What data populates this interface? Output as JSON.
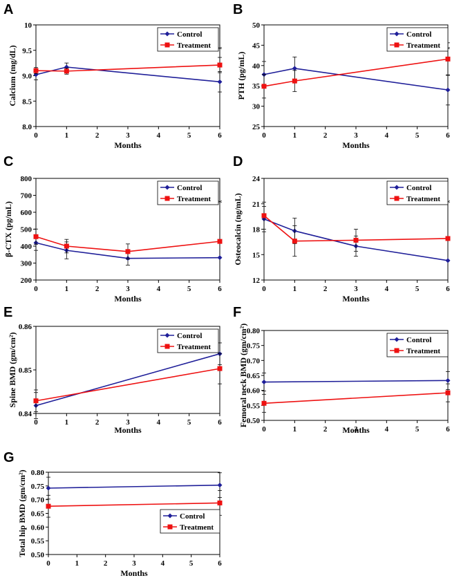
{
  "colors": {
    "control": "#1f1f99",
    "treatment": "#ee1111"
  },
  "chart_data": [
    {
      "panel": "A",
      "type": "line",
      "ylabel": "Calcium (mg/dL)",
      "xlabel": "Months",
      "ylim": [
        8.0,
        10.0
      ],
      "yticks": [
        "8.0",
        "8.5",
        "9.0",
        "9.5",
        "10"
      ],
      "ytick_values": [
        8.0,
        8.5,
        9.0,
        9.5,
        10.0
      ],
      "xlim": [
        0,
        6
      ],
      "xticks": [
        "0",
        "1",
        "2",
        "3",
        "4",
        "5",
        "6"
      ],
      "xtick_values": [
        0,
        1,
        2,
        3,
        4,
        5,
        6
      ],
      "series": [
        {
          "name": "Control",
          "x": [
            0,
            1,
            6
          ],
          "values": [
            9.02,
            9.17,
            8.88
          ],
          "errors": [
            0.1,
            0.08,
            0.2
          ]
        },
        {
          "name": "Treatment",
          "x": [
            0,
            1,
            6
          ],
          "values": [
            9.1,
            9.09,
            9.21
          ],
          "errors": [
            0.06,
            0.06,
            0.15
          ]
        }
      ],
      "annotations": [
        {
          "text": "*",
          "x": 6
        }
      ]
    },
    {
      "panel": "B",
      "type": "line",
      "ylabel": "PTH (pg/mL)",
      "xlabel": "Months",
      "ylim": [
        25,
        50
      ],
      "yticks": [
        "25",
        "30",
        "35",
        "40",
        "45",
        "50"
      ],
      "ytick_values": [
        25,
        30,
        35,
        40,
        45,
        50
      ],
      "xlim": [
        0,
        6
      ],
      "xticks": [
        "0",
        "1",
        "2",
        "3",
        "4",
        "5",
        "6"
      ],
      "xtick_values": [
        0,
        1,
        2,
        3,
        4,
        5,
        6
      ],
      "series": [
        {
          "name": "Control",
          "x": [
            0,
            1,
            6
          ],
          "values": [
            37.8,
            39.3,
            34.0
          ],
          "errors": [
            3.2,
            2.8,
            3.7
          ]
        },
        {
          "name": "Treatment",
          "x": [
            0,
            1,
            6
          ],
          "values": [
            34.9,
            36.2,
            41.6
          ],
          "errors": [
            2.9,
            2.6,
            4.0
          ]
        }
      ],
      "annotations": [
        {
          "text": "*",
          "x": 6
        }
      ]
    },
    {
      "panel": "C",
      "type": "line",
      "ylabel": "β-CTX (pg/mL)",
      "xlabel": "Months",
      "ylim": [
        200,
        800
      ],
      "yticks": [
        "200",
        "300",
        "400",
        "500",
        "600",
        "700",
        "800"
      ],
      "ytick_values": [
        200,
        300,
        400,
        500,
        600,
        700,
        800
      ],
      "xlim": [
        0,
        6
      ],
      "xticks": [
        "0",
        "1",
        "2",
        "3",
        "4",
        "5",
        "6"
      ],
      "xtick_values": [
        0,
        1,
        2,
        3,
        4,
        5,
        6
      ],
      "series": [
        {
          "name": "Control",
          "x": [
            0,
            1,
            3,
            6
          ],
          "values": [
            420,
            375,
            328,
            332
          ],
          "errors": [
            45,
            50,
            40,
            0
          ]
        },
        {
          "name": "Treatment",
          "x": [
            0,
            1,
            3,
            6
          ],
          "values": [
            456,
            400,
            368,
            428
          ],
          "errors": [
            45,
            40,
            45,
            0
          ]
        }
      ],
      "annotations": [
        {
          "text": "*",
          "x": 6
        }
      ]
    },
    {
      "panel": "D",
      "type": "line",
      "ylabel": "Osteocalcin (ng/mL)",
      "xlabel": "Months",
      "ylim": [
        12,
        24
      ],
      "yticks": [
        "12",
        "15",
        "18",
        "21",
        "24"
      ],
      "ytick_values": [
        12,
        15,
        18,
        21,
        24
      ],
      "xlim": [
        0,
        6
      ],
      "xticks": [
        "0",
        "1",
        "2",
        "3",
        "4",
        "5",
        "6"
      ],
      "xtick_values": [
        0,
        1,
        2,
        3,
        4,
        5,
        6
      ],
      "series": [
        {
          "name": "Control",
          "x": [
            0,
            1,
            3,
            6
          ],
          "values": [
            19.2,
            17.8,
            16.0,
            14.3
          ],
          "errors": [
            1.5,
            1.5,
            1.2,
            0
          ]
        },
        {
          "name": "Treatment",
          "x": [
            0,
            1,
            3,
            6
          ],
          "values": [
            19.6,
            16.6,
            16.7,
            16.9
          ],
          "errors": [
            1.6,
            1.8,
            1.3,
            0
          ]
        }
      ],
      "annotations": [
        {
          "text": "*",
          "x": 6
        }
      ]
    },
    {
      "panel": "E",
      "type": "line",
      "ylabel": "Spine BMD (gm/cm²)",
      "xlabel": "Months",
      "ylim": [
        0.84,
        0.86
      ],
      "yticks": [
        "0.84",
        "0.85",
        "0.86"
      ],
      "ytick_values": [
        0.84,
        0.85,
        0.86
      ],
      "xlim": [
        0,
        6
      ],
      "xticks": [
        "0",
        "1",
        "2",
        "3",
        "4",
        "5",
        "6"
      ],
      "xtick_values": [
        0,
        1,
        2,
        3,
        4,
        5,
        6
      ],
      "series": [
        {
          "name": "Control",
          "x": [
            0,
            6
          ],
          "values": [
            0.8418,
            0.8537
          ],
          "errors": [
            0.003,
            0.0025
          ]
        },
        {
          "name": "Treatment",
          "x": [
            0,
            6
          ],
          "values": [
            0.8429,
            0.8503
          ],
          "errors": [
            0.0025,
            0.0035
          ]
        }
      ],
      "annotations": []
    },
    {
      "panel": "F",
      "type": "line",
      "ylabel": "Femoral neck BMD (gm/cm²)",
      "xlabel": "Months",
      "ylim": [
        0.5,
        0.8
      ],
      "yticks": [
        "0.50",
        "0.55",
        "0.60",
        "0.65",
        "0.70",
        "0.75",
        "0.80"
      ],
      "ytick_values": [
        0.5,
        0.55,
        0.6,
        0.65,
        0.7,
        0.75,
        0.8
      ],
      "xlim": [
        0,
        6
      ],
      "xticks": [
        "0",
        "1",
        "2",
        "3",
        "4",
        "5",
        "6"
      ],
      "xtick_values": [
        0,
        1,
        2,
        3,
        4,
        5,
        6
      ],
      "series": [
        {
          "name": "Control",
          "x": [
            0,
            6
          ],
          "values": [
            0.628,
            0.633
          ],
          "errors": [
            0.03,
            0.03
          ]
        },
        {
          "name": "Treatment",
          "x": [
            0,
            6
          ],
          "values": [
            0.557,
            0.592
          ],
          "errors": [
            0.03,
            0.03
          ]
        }
      ],
      "annotations": []
    },
    {
      "panel": "G",
      "type": "line",
      "ylabel": "Total hip BMD (gm/cm²)",
      "xlabel": "Months",
      "ylim": [
        0.5,
        0.8
      ],
      "yticks": [
        "0.50",
        "0.55",
        "0.60",
        "0.65",
        "0.70",
        "0.75",
        "0.80"
      ],
      "ytick_values": [
        0.5,
        0.55,
        0.6,
        0.65,
        0.7,
        0.75,
        0.8
      ],
      "xlim": [
        0,
        6
      ],
      "xticks": [
        "0",
        "1",
        "2",
        "3",
        "4",
        "5",
        "6"
      ],
      "xtick_values": [
        0,
        1,
        2,
        3,
        4,
        5,
        6
      ],
      "series": [
        {
          "name": "Control",
          "x": [
            0,
            6
          ],
          "values": [
            0.742,
            0.753
          ],
          "errors": [
            0.04,
            0.045
          ]
        },
        {
          "name": "Treatment",
          "x": [
            0,
            6
          ],
          "values": [
            0.676,
            0.688
          ],
          "errors": [
            0.04,
            0.045
          ]
        }
      ],
      "annotations": []
    }
  ]
}
